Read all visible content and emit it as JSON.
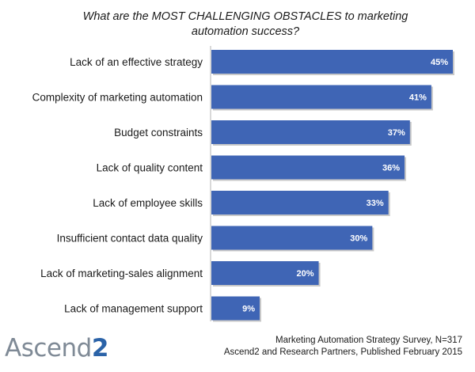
{
  "chart_data": {
    "type": "bar",
    "orientation": "horizontal",
    "title": "What are the MOST CHALLENGING OBSTACLES to marketing automation success?",
    "categories": [
      "Lack of an effective strategy",
      "Complexity of marketing automation",
      "Budget constraints",
      "Lack of quality content",
      "Lack of employee skills",
      "Insufficient contact data quality",
      "Lack of marketing-sales alignment",
      "Lack of management support"
    ],
    "values": [
      45,
      41,
      37,
      36,
      33,
      30,
      20,
      9
    ],
    "value_labels": [
      "45%",
      "41%",
      "37%",
      "36%",
      "33%",
      "30%",
      "20%",
      "9%"
    ],
    "unit": "%",
    "xlim": [
      0,
      45
    ],
    "grid": false,
    "bar_color": "#3f65b5"
  },
  "footer": {
    "logo_main": "Ascend",
    "logo_accent": "2",
    "source_line1": "Marketing Automation Strategy Survey, N=317",
    "source_line2": "Ascend2 and Research Partners, Published February 2015"
  },
  "colors": {
    "bar": "#3f65b5",
    "bar_shadow": "#9a9a9a",
    "logo_gray": "#7f8a96",
    "logo_blue": "#2b63a8"
  }
}
